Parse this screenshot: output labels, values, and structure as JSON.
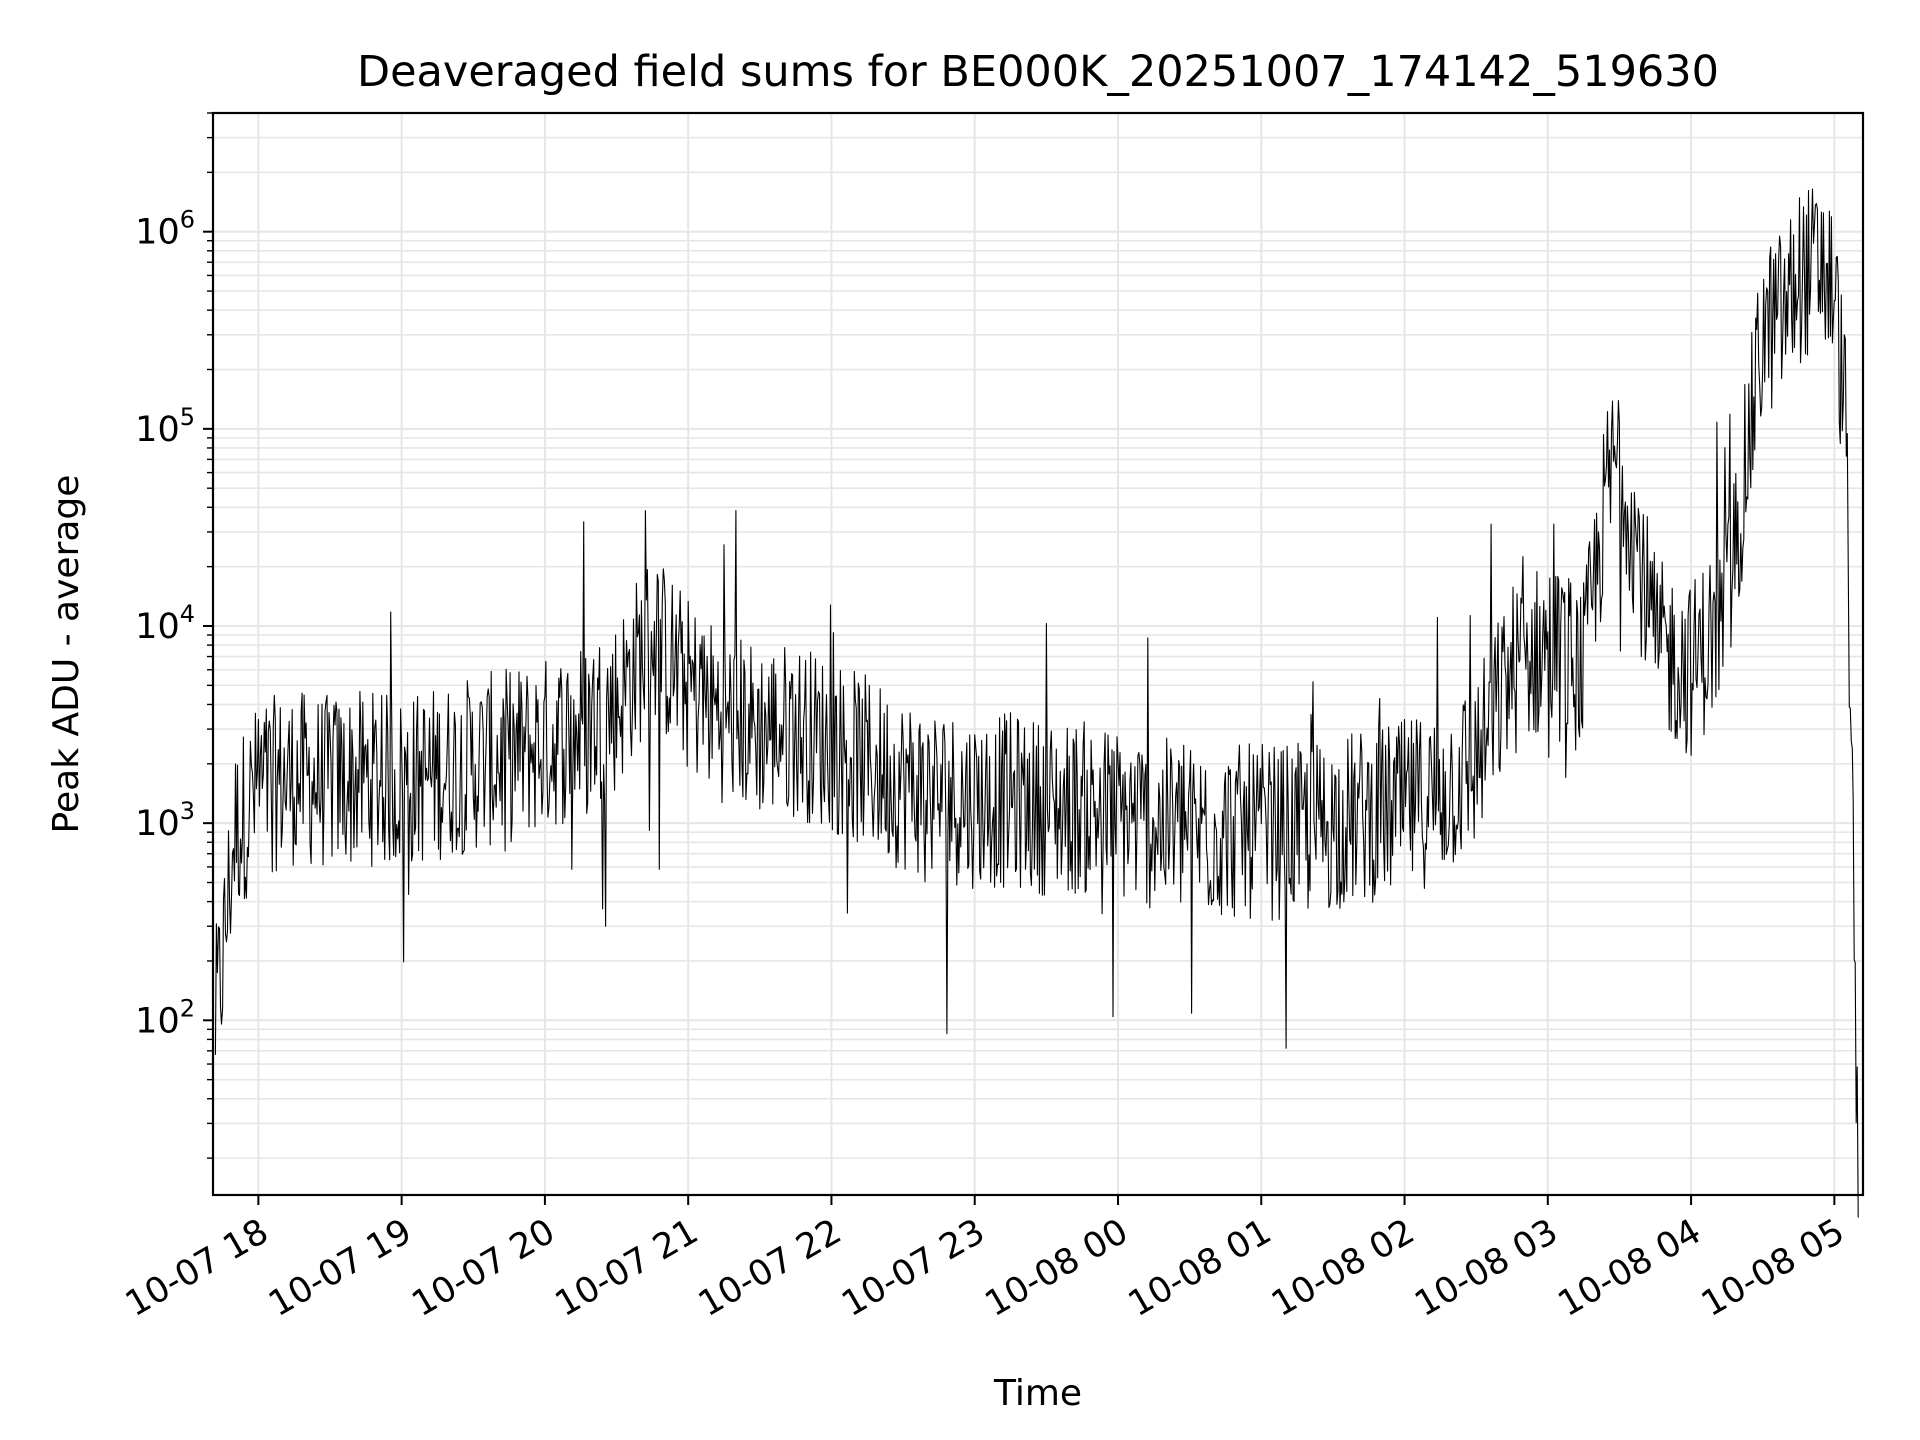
{
  "chart_data": {
    "type": "line",
    "title": "Deaveraged field sums for BE000K_20251007_174142_519630",
    "xlabel": "Time",
    "ylabel": "Peak ADU - average",
    "yscale": "log",
    "xlim": [
      "2025-10-07 17:41",
      "2025-10-08 05:12"
    ],
    "ylim": [
      13,
      4000000
    ],
    "grid": true,
    "line_color": "#000000",
    "x_ticks": [
      {
        "t": "2025-10-07 18:00",
        "label": "10-07 18"
      },
      {
        "t": "2025-10-07 19:00",
        "label": "10-07 19"
      },
      {
        "t": "2025-10-07 20:00",
        "label": "10-07 20"
      },
      {
        "t": "2025-10-07 21:00",
        "label": "10-07 21"
      },
      {
        "t": "2025-10-07 22:00",
        "label": "10-07 22"
      },
      {
        "t": "2025-10-07 23:00",
        "label": "10-07 23"
      },
      {
        "t": "2025-10-08 00:00",
        "label": "10-08 00"
      },
      {
        "t": "2025-10-08 01:00",
        "label": "10-08 01"
      },
      {
        "t": "2025-10-08 02:00",
        "label": "10-08 02"
      },
      {
        "t": "2025-10-08 03:00",
        "label": "10-08 03"
      },
      {
        "t": "2025-10-08 04:00",
        "label": "10-08 04"
      },
      {
        "t": "2025-10-08 05:00",
        "label": "10-08 05"
      }
    ],
    "y_ticks": [
      {
        "value": 100,
        "base": "10",
        "exp": "2"
      },
      {
        "value": 1000,
        "base": "10",
        "exp": "3"
      },
      {
        "value": 10000,
        "base": "10",
        "exp": "4"
      },
      {
        "value": 100000,
        "base": "10",
        "exp": "5"
      },
      {
        "value": 1000000,
        "base": "10",
        "exp": "6"
      }
    ],
    "series": [
      {
        "x": [
          "2025-10-07 17:42",
          "2025-10-07 17:45",
          "2025-10-07 17:50",
          "2025-10-07 18:00",
          "2025-10-07 18:15",
          "2025-10-07 18:30",
          "2025-10-07 18:45",
          "2025-10-07 19:00",
          "2025-10-07 19:15",
          "2025-10-07 19:30",
          "2025-10-07 19:45",
          "2025-10-07 20:00",
          "2025-10-07 20:15",
          "2025-10-07 20:30",
          "2025-10-07 20:40",
          "2025-10-07 20:45",
          "2025-10-07 21:00",
          "2025-10-07 21:15",
          "2025-10-07 21:30",
          "2025-10-07 21:45",
          "2025-10-07 22:00",
          "2025-10-07 22:15",
          "2025-10-07 22:30",
          "2025-10-07 22:45",
          "2025-10-07 23:00",
          "2025-10-07 23:15",
          "2025-10-07 23:30",
          "2025-10-07 23:45",
          "2025-10-08 00:00",
          "2025-10-08 00:15",
          "2025-10-08 00:30",
          "2025-10-08 00:45",
          "2025-10-08 01:00",
          "2025-10-08 01:15",
          "2025-10-08 01:30",
          "2025-10-08 01:45",
          "2025-10-08 02:00",
          "2025-10-08 02:15",
          "2025-10-08 02:30",
          "2025-10-08 02:45",
          "2025-10-08 03:00",
          "2025-10-08 03:15",
          "2025-10-08 03:25",
          "2025-10-08 03:30",
          "2025-10-08 03:45",
          "2025-10-08 04:00",
          "2025-10-08 04:15",
          "2025-10-08 04:30",
          "2025-10-08 04:40",
          "2025-10-08 04:45",
          "2025-10-08 04:55",
          "2025-10-08 05:00",
          "2025-10-08 05:05",
          "2025-10-08 05:10"
        ],
        "y": [
          100,
          200,
          900,
          1500,
          1700,
          1600,
          1700,
          1600,
          1800,
          2000,
          2200,
          2500,
          3000,
          4000,
          7000,
          9000,
          5000,
          3500,
          3000,
          3000,
          2500,
          2000,
          1600,
          1400,
          1300,
          1300,
          1200,
          1200,
          1100,
          1000,
          900,
          900,
          900,
          900,
          1000,
          1100,
          1200,
          1400,
          2000,
          6000,
          8000,
          6000,
          50000,
          80000,
          8000,
          6000,
          12000,
          300000,
          400000,
          600000,
          650000,
          500000,
          100000,
          10
        ]
      }
    ]
  }
}
